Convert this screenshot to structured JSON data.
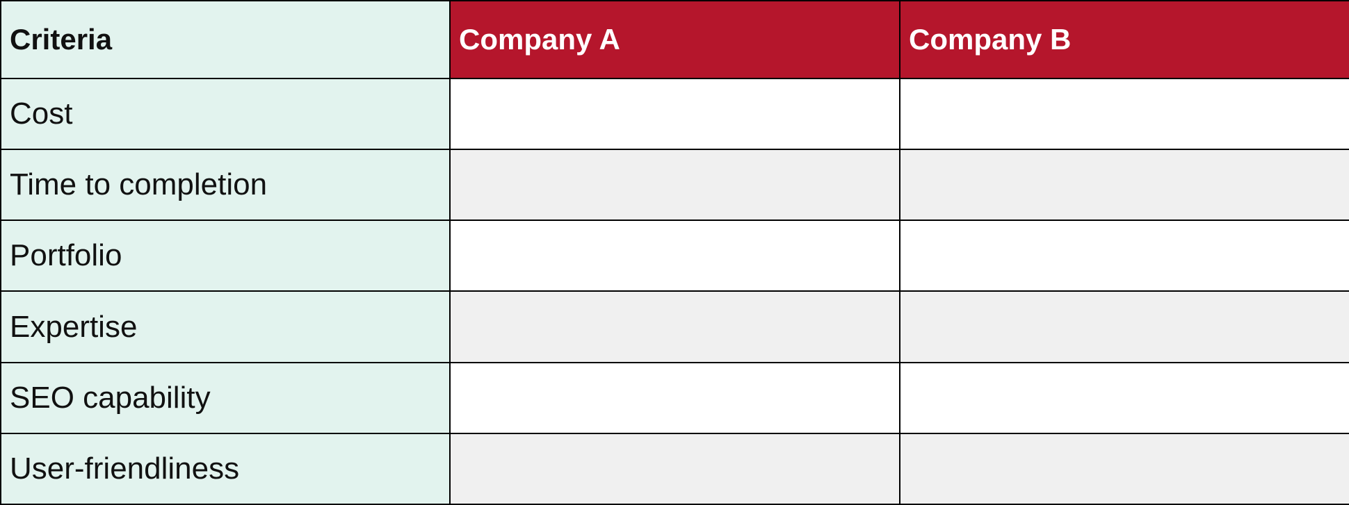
{
  "table": {
    "header": [
      "Criteria",
      "Company A",
      "Company B"
    ],
    "rows": [
      "Cost",
      "Time to completion",
      "Portfolio",
      "Expertise",
      "SEO capability",
      "User-friendliness"
    ]
  }
}
